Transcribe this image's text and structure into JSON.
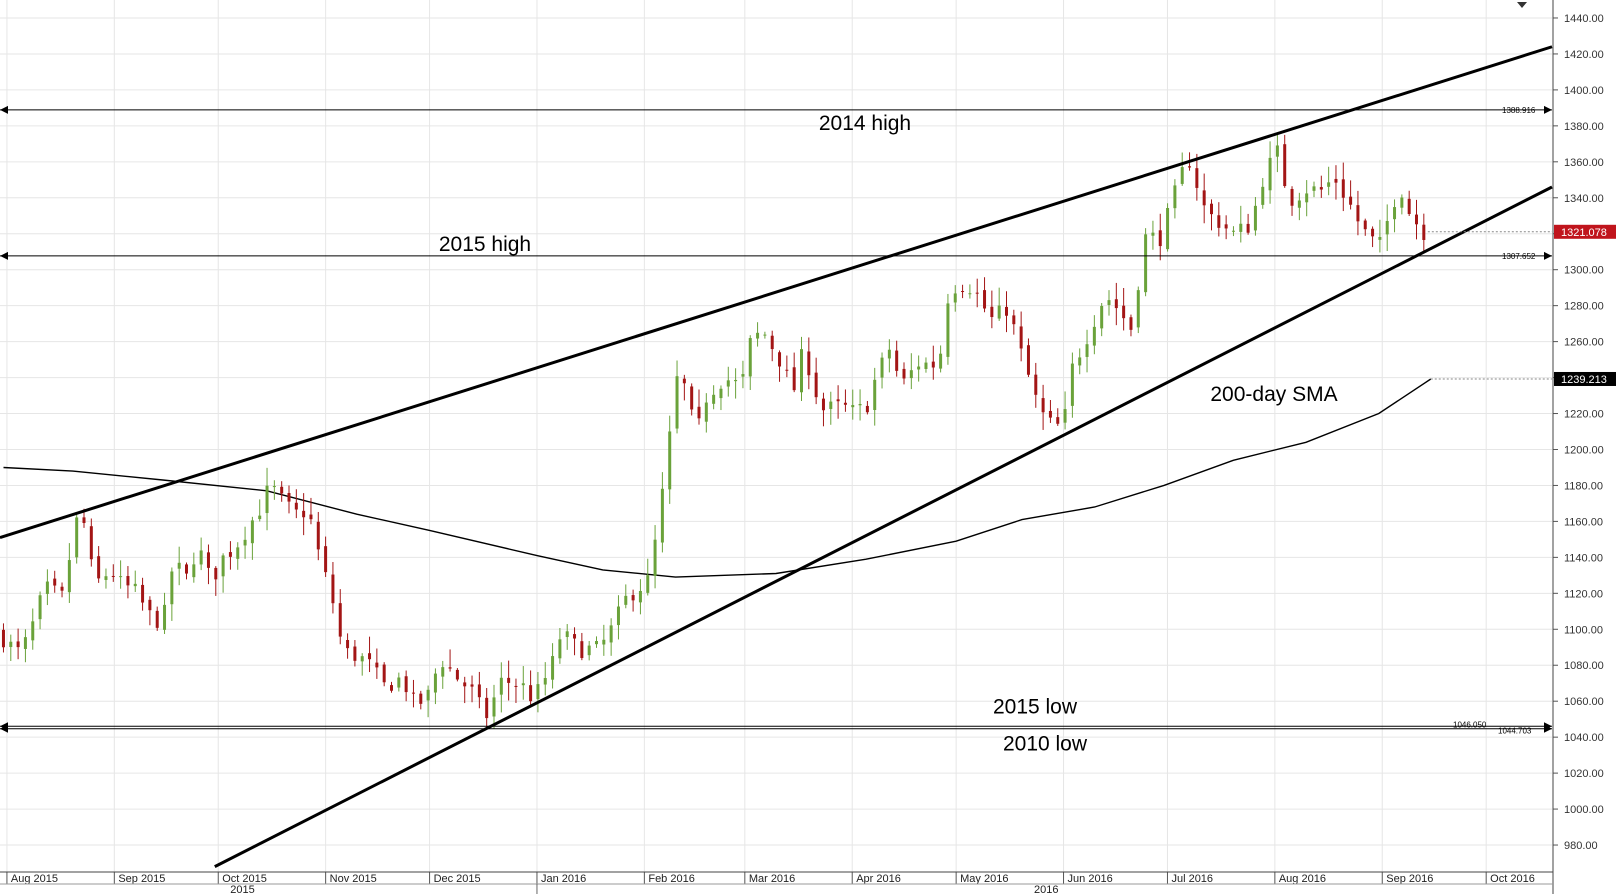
{
  "colors": {
    "bull": "#6aa23a",
    "bear": "#a31515",
    "current_tag": "#c0141c",
    "sma_tag": "#000000",
    "grid": "#e6e6e6",
    "line": "#000000"
  },
  "chart_data": {
    "type": "candlestick",
    "ylim": [
      965,
      1450
    ],
    "yticks": [
      980,
      1000,
      1020,
      1040,
      1060,
      1080,
      1100,
      1120,
      1140,
      1160,
      1180,
      1200,
      1220,
      1240,
      1260,
      1280,
      1300,
      1320,
      1340,
      1360,
      1380,
      1400,
      1420,
      1440
    ],
    "ytick_labels": [
      "980.00",
      "1000.00",
      "1020.00",
      "1040.00",
      "1060.00",
      "1080.00",
      "1100.00",
      "1120.00",
      "1140.00",
      "1160.00",
      "1180.00",
      "1200.00",
      "1220.00",
      "1240.00",
      "1260.00",
      "1280.00",
      "1300.00",
      "1320.00",
      "1340.00",
      "1360.00",
      "1380.00",
      "1400.00",
      "1420.00",
      "1440.00"
    ],
    "xlim": [
      "2015-07-30",
      "2016-10-20"
    ],
    "months": [
      {
        "label": "Aug 2015",
        "date": "2015-08-01"
      },
      {
        "label": "Sep 2015",
        "date": "2015-09-01"
      },
      {
        "label": "Oct 2015",
        "date": "2015-10-01"
      },
      {
        "label": "Nov 2015",
        "date": "2015-11-01"
      },
      {
        "label": "Dec 2015",
        "date": "2015-12-01"
      },
      {
        "label": "Jan 2016",
        "date": "2016-01-01"
      },
      {
        "label": "Feb 2016",
        "date": "2016-02-01"
      },
      {
        "label": "Mar 2016",
        "date": "2016-03-01"
      },
      {
        "label": "Apr 2016",
        "date": "2016-04-01"
      },
      {
        "label": "May 2016",
        "date": "2016-05-01"
      },
      {
        "label": "Jun 2016",
        "date": "2016-06-01"
      },
      {
        "label": "Jul 2016",
        "date": "2016-07-01"
      },
      {
        "label": "Aug 2016",
        "date": "2016-08-01"
      },
      {
        "label": "Sep 2016",
        "date": "2016-09-01"
      },
      {
        "label": "Oct 2016",
        "date": "2016-10-01"
      }
    ],
    "years": [
      {
        "label": "2015",
        "date": "2015-10-08"
      },
      {
        "label": "2016",
        "date": "2016-05-27"
      }
    ],
    "year_divider": "2016-01-01",
    "close_path": [
      [
        "2015-07-31",
        1095
      ],
      [
        "2015-08-04",
        1087
      ],
      [
        "2015-08-07",
        1094
      ],
      [
        "2015-08-12",
        1123
      ],
      [
        "2015-08-17",
        1118
      ],
      [
        "2015-08-21",
        1160
      ],
      [
        "2015-08-24",
        1158
      ],
      [
        "2015-08-26",
        1124
      ],
      [
        "2015-08-31",
        1133
      ],
      [
        "2015-09-03",
        1125
      ],
      [
        "2015-09-07",
        1121
      ],
      [
        "2015-09-11",
        1108
      ],
      [
        "2015-09-15",
        1103
      ],
      [
        "2015-09-18",
        1137
      ],
      [
        "2015-09-22",
        1128
      ],
      [
        "2015-09-25",
        1147
      ],
      [
        "2015-09-29",
        1126
      ],
      [
        "2015-10-02",
        1139
      ],
      [
        "2015-10-06",
        1146
      ],
      [
        "2015-10-09",
        1155
      ],
      [
        "2015-10-13",
        1167
      ],
      [
        "2015-10-16",
        1180
      ],
      [
        "2015-10-20",
        1170
      ],
      [
        "2015-10-23",
        1164
      ],
      [
        "2015-10-27",
        1166
      ],
      [
        "2015-10-30",
        1142
      ],
      [
        "2015-11-03",
        1116
      ],
      [
        "2015-11-06",
        1088
      ],
      [
        "2015-11-10",
        1085
      ],
      [
        "2015-11-13",
        1082
      ],
      [
        "2015-11-18",
        1068
      ],
      [
        "2015-11-23",
        1073
      ],
      [
        "2015-11-27",
        1057
      ],
      [
        "2015-12-01",
        1064
      ],
      [
        "2015-12-04",
        1084
      ],
      [
        "2015-12-09",
        1073
      ],
      [
        "2015-12-14",
        1064
      ],
      [
        "2015-12-17",
        1050
      ],
      [
        "2015-12-22",
        1072
      ],
      [
        "2015-12-28",
        1068
      ],
      [
        "2015-12-31",
        1061
      ],
      [
        "2016-01-05",
        1078
      ],
      [
        "2016-01-08",
        1098
      ],
      [
        "2016-01-13",
        1089
      ],
      [
        "2016-01-19",
        1089
      ],
      [
        "2016-01-22",
        1098
      ],
      [
        "2016-01-27",
        1118
      ],
      [
        "2016-02-02",
        1127
      ],
      [
        "2016-02-05",
        1157
      ],
      [
        "2016-02-11",
        1247
      ],
      [
        "2016-02-16",
        1207
      ],
      [
        "2016-02-19",
        1230
      ],
      [
        "2016-02-24",
        1240
      ],
      [
        "2016-02-29",
        1235
      ],
      [
        "2016-03-03",
        1263
      ],
      [
        "2016-03-07",
        1264
      ],
      [
        "2016-03-11",
        1250
      ],
      [
        "2016-03-15",
        1232
      ],
      [
        "2016-03-18",
        1256
      ],
      [
        "2016-03-23",
        1222
      ],
      [
        "2016-03-29",
        1224
      ],
      [
        "2016-04-01",
        1221
      ],
      [
        "2016-04-05",
        1223
      ],
      [
        "2016-04-08",
        1241
      ],
      [
        "2016-04-12",
        1257
      ],
      [
        "2016-04-15",
        1235
      ],
      [
        "2016-04-20",
        1248
      ],
      [
        "2016-04-26",
        1247
      ],
      [
        "2016-04-29",
        1290
      ],
      [
        "2016-05-03",
        1292
      ],
      [
        "2016-05-06",
        1290
      ],
      [
        "2016-05-11",
        1272
      ],
      [
        "2016-05-16",
        1279
      ],
      [
        "2016-05-19",
        1258
      ],
      [
        "2016-05-24",
        1228
      ],
      [
        "2016-05-27",
        1215
      ],
      [
        "2016-06-01",
        1212
      ],
      [
        "2016-06-03",
        1243
      ],
      [
        "2016-06-08",
        1264
      ],
      [
        "2016-06-13",
        1286
      ],
      [
        "2016-06-16",
        1280
      ],
      [
        "2016-06-21",
        1266
      ],
      [
        "2016-06-24",
        1318
      ],
      [
        "2016-06-29",
        1318
      ],
      [
        "2016-07-04",
        1347
      ],
      [
        "2016-07-07",
        1363
      ],
      [
        "2016-07-12",
        1332
      ],
      [
        "2016-07-15",
        1328
      ],
      [
        "2016-07-20",
        1320
      ],
      [
        "2016-07-25",
        1325
      ],
      [
        "2016-07-29",
        1354
      ],
      [
        "2016-08-02",
        1366
      ],
      [
        "2016-08-05",
        1338
      ],
      [
        "2016-08-10",
        1345
      ],
      [
        "2016-08-15",
        1344
      ],
      [
        "2016-08-18",
        1352
      ],
      [
        "2016-08-23",
        1335
      ],
      [
        "2016-08-26",
        1323
      ],
      [
        "2016-08-31",
        1312
      ],
      [
        "2016-09-06",
        1348
      ],
      [
        "2016-09-09",
        1331
      ],
      [
        "2016-09-13",
        1321
      ]
    ],
    "candle_start": "2015-07-31",
    "candle_end": "2016-09-13",
    "candle_count": 195,
    "sma_200": [
      [
        "2015-07-31",
        1190
      ],
      [
        "2015-08-20",
        1188
      ],
      [
        "2015-09-15",
        1183
      ],
      [
        "2015-10-15",
        1177
      ],
      [
        "2015-11-10",
        1164
      ],
      [
        "2015-12-01",
        1155
      ],
      [
        "2016-01-01",
        1141
      ],
      [
        "2016-01-20",
        1133
      ],
      [
        "2016-02-10",
        1129
      ],
      [
        "2016-03-10",
        1131
      ],
      [
        "2016-04-05",
        1139
      ],
      [
        "2016-05-01",
        1149
      ],
      [
        "2016-05-20",
        1161
      ],
      [
        "2016-06-10",
        1168
      ],
      [
        "2016-06-30",
        1180
      ],
      [
        "2016-07-20",
        1194
      ],
      [
        "2016-08-10",
        1204
      ],
      [
        "2016-08-31",
        1220
      ],
      [
        "2016-09-15",
        1239.213
      ]
    ],
    "trendlines": [
      {
        "name": "upper-channel-line",
        "from": [
          "2015-07-30",
          1151
        ],
        "to": [
          "2016-10-20",
          1424
        ]
      },
      {
        "name": "lower-channel-line",
        "from": [
          "2015-09-30",
          968
        ],
        "to": [
          "2016-10-20",
          1346
        ]
      }
    ],
    "levels": [
      {
        "id": "2014-high",
        "value": 1388.916,
        "label": "1388.916",
        "annotation": "2014 high"
      },
      {
        "id": "2015-high",
        "value": 1307.652,
        "label": "1307.652",
        "annotation": "2015 high"
      },
      {
        "id": "2015-low",
        "value": 1046.05,
        "label": "1046.050",
        "annotation": "2015 low"
      },
      {
        "id": "2010-low",
        "value": 1044.703,
        "label": "1044.703",
        "annotation": "2010 low"
      }
    ],
    "sma_label": "200-day SMA",
    "current_price": {
      "value": 1321.078,
      "label": "1321.078"
    },
    "sma_current": {
      "value": 1239.213,
      "label": "1239.213"
    }
  }
}
